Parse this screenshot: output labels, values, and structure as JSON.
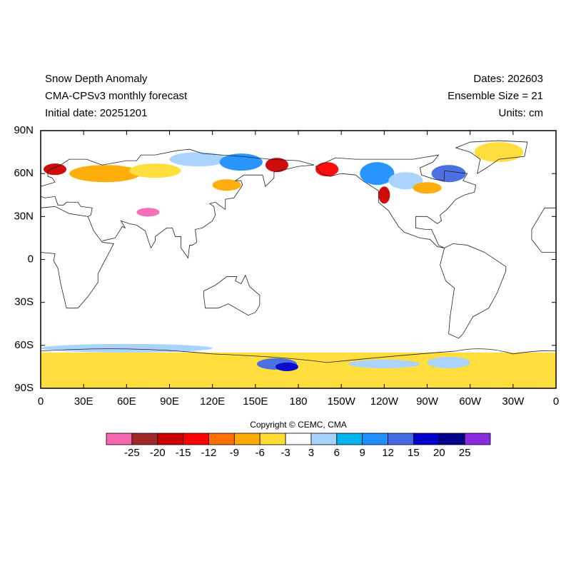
{
  "header": {
    "left": [
      "Snow Depth Anomaly",
      "CMA-CPSv3 monthly forecast",
      "Initial date: 20251201"
    ],
    "right": [
      "Dates: 202603",
      "Ensemble Size = 21",
      "Units: cm"
    ]
  },
  "axes": {
    "x_labels": [
      "0",
      "30E",
      "60E",
      "90E",
      "120E",
      "150E",
      "180",
      "150W",
      "120W",
      "90W",
      "60W",
      "30W",
      "0"
    ],
    "y_labels": [
      "90N",
      "60N",
      "30N",
      "0",
      "30S",
      "60S",
      "90S"
    ]
  },
  "copyright": "Copyright © CEMC, CMA",
  "colorbar": {
    "colors": [
      "#f768b3",
      "#a02828",
      "#cc0000",
      "#ff0000",
      "#ff7000",
      "#ffaa00",
      "#ffdd33",
      "#ffffff",
      "#a6d2ff",
      "#00b4f0",
      "#1e90ff",
      "#4169e1",
      "#0000cd",
      "#00008b",
      "#8a2be2"
    ],
    "labels": [
      -25,
      -20,
      -15,
      -12,
      -9,
      -6,
      -3,
      3,
      6,
      9,
      12,
      15,
      20,
      25
    ]
  }
}
